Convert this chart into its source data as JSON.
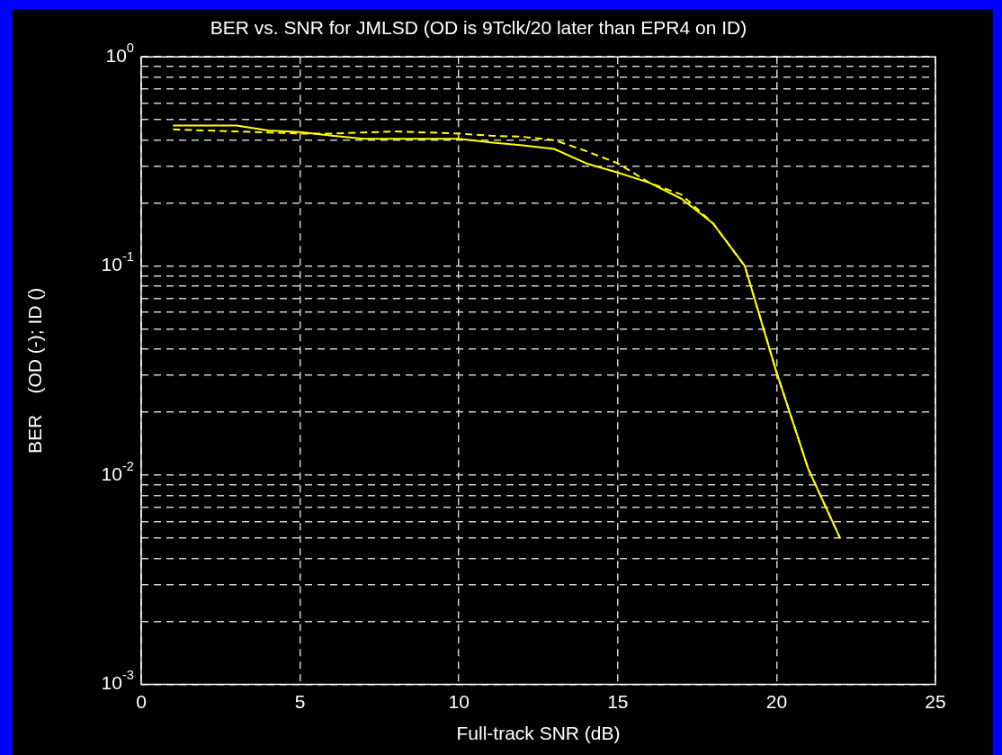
{
  "chart_data": {
    "type": "line",
    "title": "BER vs. SNR for JMLSD (OD is 9Tclk/20 later than EPR4 on ID)",
    "xlabel": "Full-track SNR (dB)",
    "ylabel": "BER    (OD (-); ID ()",
    "log": "y",
    "grid": true,
    "marker": "none",
    "xlim": [
      0,
      25
    ],
    "xticks": [
      0,
      5,
      10,
      15,
      20,
      25
    ],
    "ylim": [
      0.001,
      1
    ],
    "yticks": [
      {
        "value": 0.001,
        "label": "10$^{-3}$"
      },
      {
        "value": 0.002,
        "label": null
      },
      {
        "value": 0.003,
        "label": null
      },
      {
        "value": 0.004,
        "label": null
      },
      {
        "value": 0.005,
        "label": null
      },
      {
        "value": 0.006,
        "label": null
      },
      {
        "value": 0.007,
        "label": null
      },
      {
        "value": 0.008,
        "label": null
      },
      {
        "value": 0.009,
        "label": null
      },
      {
        "value": 0.01,
        "label": "10$^{-2}$"
      },
      {
        "value": 0.02,
        "label": null
      },
      {
        "value": 0.03,
        "label": null
      },
      {
        "value": 0.04,
        "label": null
      },
      {
        "value": 0.05,
        "label": null
      },
      {
        "value": 0.06,
        "label": null
      },
      {
        "value": 0.07,
        "label": null
      },
      {
        "value": 0.08,
        "label": null
      },
      {
        "value": 0.09,
        "label": null
      },
      {
        "value": 0.1,
        "label": "10$^{-1}$"
      },
      {
        "value": 0.2,
        "label": null
      },
      {
        "value": 0.3,
        "label": null
      },
      {
        "value": 0.4,
        "label": null
      },
      {
        "value": 0.5,
        "label": null
      },
      {
        "value": 0.6,
        "label": null
      },
      {
        "value": 0.7,
        "label": null
      },
      {
        "value": 0.8,
        "label": null
      },
      {
        "value": 0.9,
        "label": null
      },
      {
        "value": 1,
        "label": "10$^{0}$"
      }
    ],
    "x": [
      1,
      2,
      3,
      4,
      5,
      6,
      7,
      8,
      9,
      10,
      11,
      12,
      13,
      14,
      15,
      16,
      17,
      18,
      19,
      20,
      21,
      22
    ],
    "series": [
      {
        "color": "#ffff00",
        "line_style": "solid",
        "values": [
          0.47,
          0.47,
          0.47,
          0.445,
          0.437,
          0.42,
          0.406,
          0.406,
          0.406,
          0.406,
          0.39,
          0.378,
          0.363,
          0.31,
          0.28,
          0.25,
          0.21,
          0.16,
          0.1,
          0.031,
          0.0107,
          0.005
        ]
      },
      {
        "color": "#ffff00",
        "line_style": "dashed",
        "values": [
          0.45,
          0.445,
          0.44,
          0.435,
          0.43,
          0.43,
          0.435,
          0.44,
          0.435,
          0.43,
          0.42,
          0.415,
          0.4,
          0.355,
          0.31,
          0.25,
          0.22,
          0.16,
          0.1,
          0.031,
          0.0107,
          0.005
        ]
      }
    ]
  }
}
